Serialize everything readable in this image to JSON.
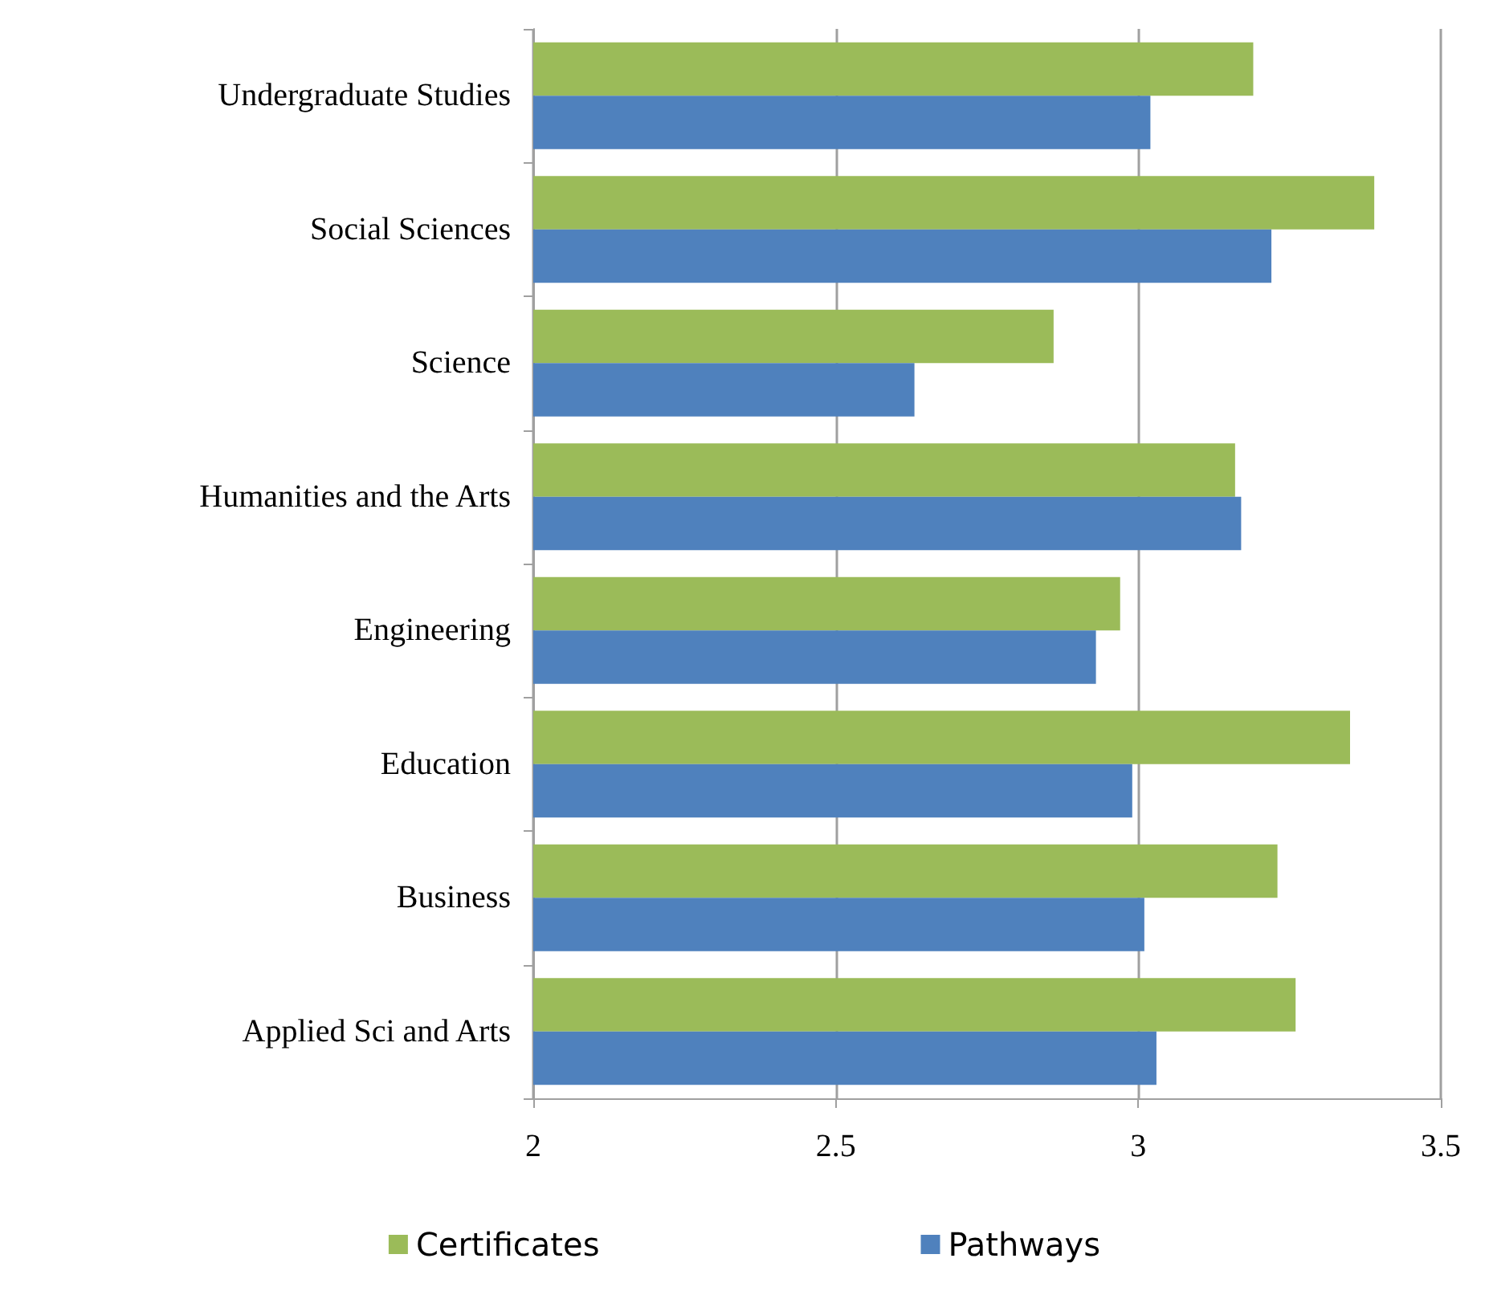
{
  "chart_data": {
    "type": "bar",
    "orientation": "horizontal",
    "categories": [
      "Undergraduate Studies",
      "Social Sciences",
      "Science",
      "Humanities and the Arts",
      "Engineering",
      "Education",
      "Business",
      "Applied Sci and Arts"
    ],
    "series": [
      {
        "name": "Certificates",
        "color": "#9bbb59",
        "values": [
          3.19,
          3.39,
          2.86,
          3.16,
          2.97,
          3.35,
          3.23,
          3.26
        ]
      },
      {
        "name": "Pathways",
        "color": "#4f81bd",
        "values": [
          3.02,
          3.22,
          2.63,
          3.17,
          2.93,
          2.99,
          3.01,
          3.03
        ]
      }
    ],
    "xlim": [
      2,
      3.5
    ],
    "xticks": [
      2,
      2.5,
      3,
      3.5
    ],
    "grid": "x",
    "legend": "bottom"
  }
}
